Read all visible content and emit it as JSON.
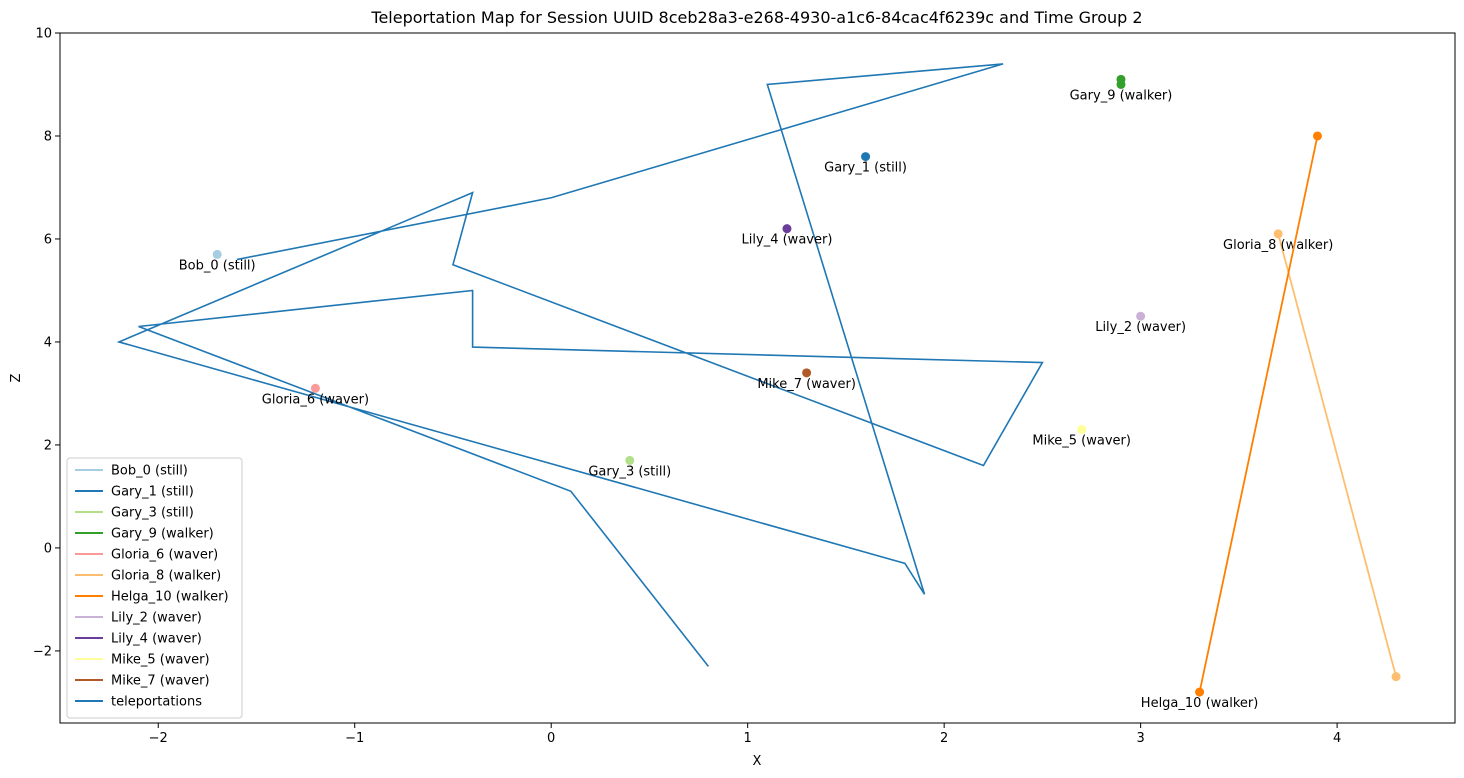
{
  "chart_data": {
    "type": "scatter",
    "title": "Teleportation Map for Session UUID 8ceb28a3-e268-4930-a1c6-84cac4f6239c and Time Group 2",
    "xlabel": "X",
    "ylabel": "Z",
    "xlim": [
      -2.5,
      4.6
    ],
    "ylim": [
      -3.4,
      10
    ],
    "xticks": [
      -2,
      -1,
      0,
      1,
      2,
      3,
      4
    ],
    "yticks": [
      -2,
      0,
      2,
      4,
      6,
      8,
      10
    ],
    "grid": false,
    "legend_position": "lower-left",
    "series": [
      {
        "name": "Bob_0 (still)",
        "color": "#a6cee3",
        "points": [
          [
            -1.7,
            5.7
          ]
        ],
        "label_point": [
          -1.7,
          5.7
        ]
      },
      {
        "name": "Gary_1 (still)",
        "color": "#1f78b4",
        "points": [
          [
            1.6,
            7.6
          ]
        ],
        "label_point": [
          1.6,
          7.6
        ]
      },
      {
        "name": "Gary_3 (still)",
        "color": "#b2df8a",
        "points": [
          [
            0.4,
            1.7
          ]
        ],
        "label_point": [
          0.4,
          1.7
        ]
      },
      {
        "name": "Gary_9 (walker)",
        "color": "#33a02c",
        "points": [
          [
            2.9,
            9.1
          ],
          [
            2.9,
            9.0
          ]
        ],
        "label_point": [
          2.9,
          9.0
        ]
      },
      {
        "name": "Gloria_6 (waver)",
        "color": "#fb9a99",
        "points": [
          [
            -1.2,
            3.1
          ]
        ],
        "label_point": [
          -1.2,
          3.1
        ]
      },
      {
        "name": "Gloria_8 (walker)",
        "color": "#fdbf6f",
        "points": [
          [
            3.7,
            6.1
          ],
          [
            4.3,
            -2.5
          ]
        ],
        "label_point": [
          3.7,
          6.1
        ]
      },
      {
        "name": "Helga_10 (walker)",
        "color": "#ff7f00",
        "points": [
          [
            3.9,
            8.0
          ],
          [
            3.3,
            -2.8
          ]
        ],
        "label_point": [
          3.3,
          -2.8
        ]
      },
      {
        "name": "Lily_2 (waver)",
        "color": "#cab2d6",
        "points": [
          [
            3.0,
            4.5
          ]
        ],
        "label_point": [
          3.0,
          4.5
        ]
      },
      {
        "name": "Lily_4 (waver)",
        "color": "#6a3d9a",
        "points": [
          [
            1.2,
            6.2
          ]
        ],
        "label_point": [
          1.2,
          6.2
        ]
      },
      {
        "name": "Mike_5 (waver)",
        "color": "#ffff99",
        "points": [
          [
            2.7,
            2.3
          ]
        ],
        "label_point": [
          2.7,
          2.3
        ]
      },
      {
        "name": "Mike_7 (waver)",
        "color": "#b15928",
        "points": [
          [
            1.3,
            3.4
          ]
        ],
        "label_point": [
          1.3,
          3.4
        ]
      }
    ],
    "teleportations": {
      "name": "teleportations",
      "color": "#1f77b4",
      "path": [
        [
          -1.6,
          5.6
        ],
        [
          0.0,
          6.8
        ],
        [
          2.3,
          9.4
        ],
        [
          1.1,
          9.0
        ],
        [
          1.9,
          -0.9
        ],
        [
          1.8,
          -0.3
        ],
        [
          -2.2,
          4.0
        ],
        [
          -0.4,
          6.9
        ],
        [
          -0.5,
          5.5
        ],
        [
          2.2,
          1.6
        ],
        [
          2.5,
          3.6
        ],
        [
          -0.4,
          3.9
        ],
        [
          -0.4,
          5.0
        ],
        [
          -2.1,
          4.3
        ],
        [
          0.1,
          1.1
        ],
        [
          0.8,
          -2.3
        ]
      ]
    }
  }
}
